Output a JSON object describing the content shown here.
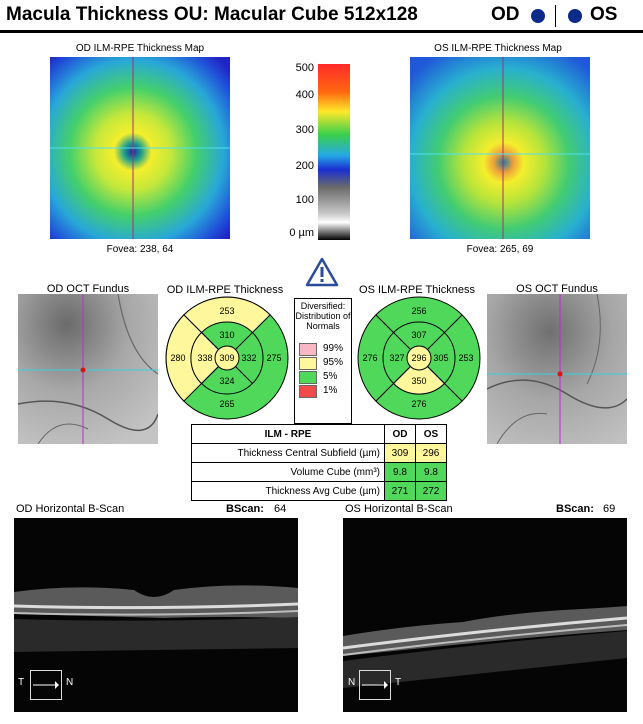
{
  "header": {
    "title": "Macula Thickness OU: Macular Cube 512x128",
    "od_label": "OD",
    "os_label": "OS"
  },
  "thickness_maps": {
    "od_title": "OD ILM-RPE Thickness Map",
    "os_title": "OS ILM-RPE Thickness Map",
    "od_fovea": "Fovea: 238, 64",
    "os_fovea": "Fovea: 265, 69"
  },
  "color_bar": {
    "labels": [
      "500",
      "400",
      "300",
      "200",
      "100",
      "0 µm"
    ]
  },
  "fundus": {
    "od_title": "OD OCT Fundus",
    "os_title": "OS OCT Fundus"
  },
  "etdrs": {
    "od_title": "OD ILM-RPE Thickness",
    "os_title": "OS ILM-RPE Thickness",
    "od": {
      "center": "309",
      "inner_sup": "310",
      "inner_nasal": "332",
      "inner_inf": "324",
      "inner_temp": "338",
      "outer_sup": "253",
      "outer_nasal": "275",
      "outer_inf": "265",
      "outer_temp": "280"
    },
    "os": {
      "center": "296",
      "inner_sup": "307",
      "inner_nasal": "305",
      "inner_inf": "350",
      "inner_temp": "327",
      "outer_sup": "256",
      "outer_nasal": "253",
      "outer_inf": "276",
      "outer_temp": "276"
    }
  },
  "legend": {
    "title": "Diversified: Distribution of Normals",
    "items": [
      {
        "label": "99%",
        "color": "#f7b7c4"
      },
      {
        "label": "95%",
        "color": "#fff79c"
      },
      {
        "label": "5%",
        "color": "#4fd85a"
      },
      {
        "label": "1%",
        "color": "#f04a4a"
      }
    ]
  },
  "table": {
    "header": [
      "ILM - RPE",
      "OD",
      "OS"
    ],
    "rows": [
      {
        "label": "Thickness Central Subfield (µm)",
        "od": "309",
        "os": "296"
      },
      {
        "label": "Volume Cube (mm³)",
        "od": "9.8",
        "os": "9.8"
      },
      {
        "label": "Thickness Avg Cube (µm)",
        "od": "271",
        "os": "272"
      }
    ]
  },
  "bscan": {
    "od_title": "OD Horizontal B-Scan",
    "os_title": "OS Horizontal B-Scan",
    "bscan_label": "BScan:",
    "od_value": "64",
    "os_value": "69",
    "od_orientation": {
      "left": "T",
      "right": "N"
    },
    "os_orientation": {
      "left": "N",
      "right": "T"
    }
  },
  "colors": {
    "etdrs_yellow": "#fff79c",
    "etdrs_green": "#4fd85a",
    "eye_dot": "#0b2a8a"
  }
}
